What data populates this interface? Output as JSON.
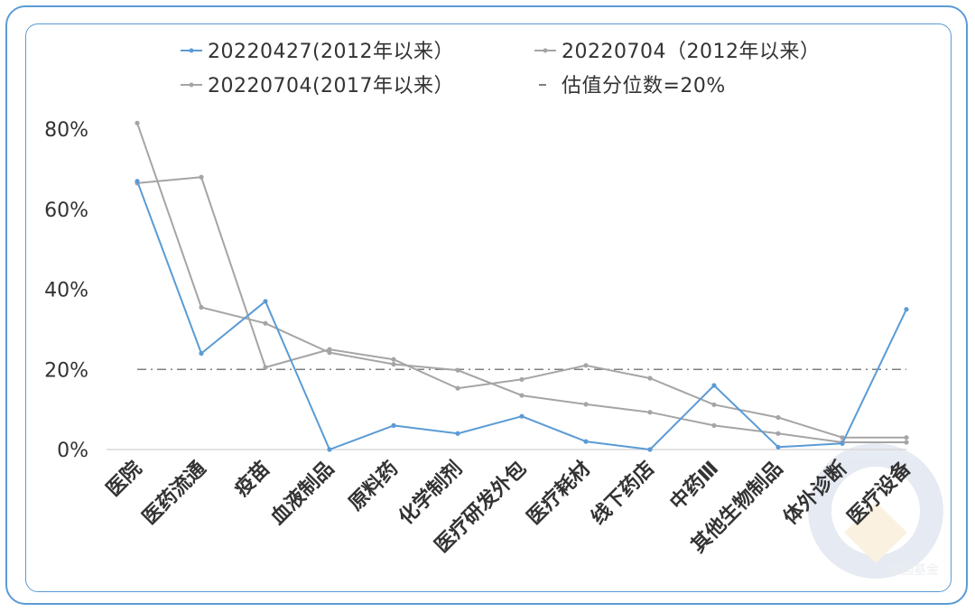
{
  "chart_data": {
    "type": "line",
    "categories": [
      "医院",
      "医药流通",
      "疫苗",
      "血液制品",
      "原料药",
      "化学制剂",
      "医疗研发外包",
      "医疗耗材",
      "线下药店",
      "中药Ⅲ",
      "其他生物制品",
      "体外诊断",
      "医疗设备"
    ],
    "ylim": [
      0,
      80
    ],
    "yticks": [
      "0%",
      "20%",
      "40%",
      "60%",
      "80%"
    ],
    "grid": false,
    "legend_position": "top",
    "series": [
      {
        "name": "20220427(2012年以来）",
        "color": "#5b9bd5",
        "values": [
          67,
          24,
          37,
          0,
          6,
          4,
          8.3,
          2,
          0,
          16,
          0.6,
          1.5,
          35
        ]
      },
      {
        "name": "20220704（2012年以来）",
        "color": "#a5a5a5",
        "values": [
          66.5,
          68,
          20.5,
          25,
          22.5,
          15.3,
          17.5,
          21,
          17.8,
          11.2,
          8,
          3,
          3
        ]
      },
      {
        "name": "20220704(2017年以来）",
        "color": "#a5a5a5",
        "values": [
          81.5,
          35.5,
          31.5,
          24.2,
          21.3,
          19.8,
          13.5,
          11.3,
          9.3,
          6,
          4,
          1.8,
          1.8
        ]
      }
    ],
    "reference_line": {
      "name": "估值分位数=20%",
      "value": 20,
      "color": "#7f7f7f"
    }
  },
  "watermark": {
    "text": "富国基金"
  }
}
